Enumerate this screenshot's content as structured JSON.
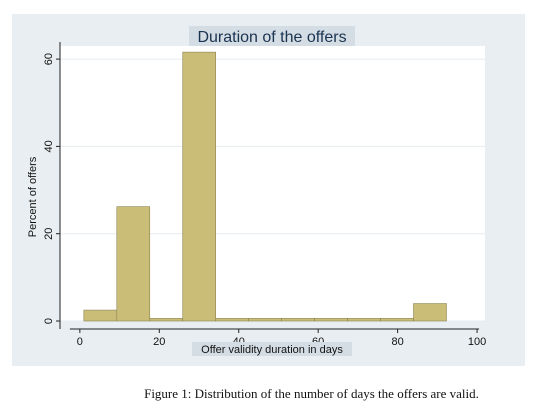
{
  "chart_data": {
    "type": "bar",
    "title": "Duration of the offers",
    "xlabel": "Offer validity duration in days",
    "ylabel": "Percent of offers",
    "xlim": [
      -5,
      102
    ],
    "ylim": [
      0,
      63
    ],
    "xticks": [
      0,
      20,
      40,
      60,
      80,
      100
    ],
    "yticks": [
      0,
      20,
      40,
      60
    ],
    "grid": true,
    "bins": [
      {
        "x0": 1,
        "x1": 9.3,
        "value": 2.5
      },
      {
        "x0": 9.3,
        "x1": 17.6,
        "value": 26.2
      },
      {
        "x0": 17.6,
        "x1": 25.9,
        "value": 0.6
      },
      {
        "x0": 25.9,
        "x1": 34.2,
        "value": 61.6
      },
      {
        "x0": 34.2,
        "x1": 42.5,
        "value": 0.6
      },
      {
        "x0": 42.5,
        "x1": 50.8,
        "value": 0.6
      },
      {
        "x0": 50.8,
        "x1": 59.1,
        "value": 0.6
      },
      {
        "x0": 59.1,
        "x1": 67.4,
        "value": 0.6
      },
      {
        "x0": 67.4,
        "x1": 75.7,
        "value": 0.6
      },
      {
        "x0": 75.7,
        "x1": 84,
        "value": 0.6
      },
      {
        "x0": 84,
        "x1": 92.3,
        "value": 4.0
      }
    ],
    "colors": {
      "bar_fill": "#c9bd78",
      "bar_stroke": "#8c8250",
      "plot_bg": "#ffffff",
      "outer_bg": "#e8eef2",
      "grid": "#e6ecef"
    }
  },
  "caption": "Figure 1: Distribution of the number of days the offers are valid."
}
